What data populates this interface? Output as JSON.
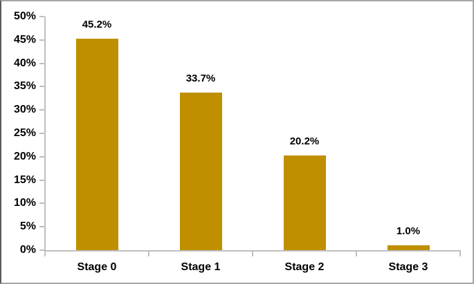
{
  "chart_data": {
    "type": "bar",
    "title": "",
    "xlabel": "",
    "ylabel": "",
    "categories": [
      "Stage 0",
      "Stage 1",
      "Stage 2",
      "Stage 3"
    ],
    "values": [
      45.2,
      33.7,
      20.2,
      1.0
    ],
    "data_labels": [
      "45.2%",
      "33.7%",
      "20.2%",
      "1.0%"
    ],
    "ylim": [
      0,
      50
    ],
    "ytick_step": 5,
    "ytick_labels": [
      "0%",
      "5%",
      "10%",
      "15%",
      "20%",
      "25%",
      "30%",
      "35%",
      "40%",
      "45%",
      "50%"
    ],
    "grid": false,
    "legend": null,
    "bar_color": "#BF8F00",
    "axis_color": "#BFBFBF",
    "text_color": "#000000",
    "background_color": "#FFFFFF"
  }
}
